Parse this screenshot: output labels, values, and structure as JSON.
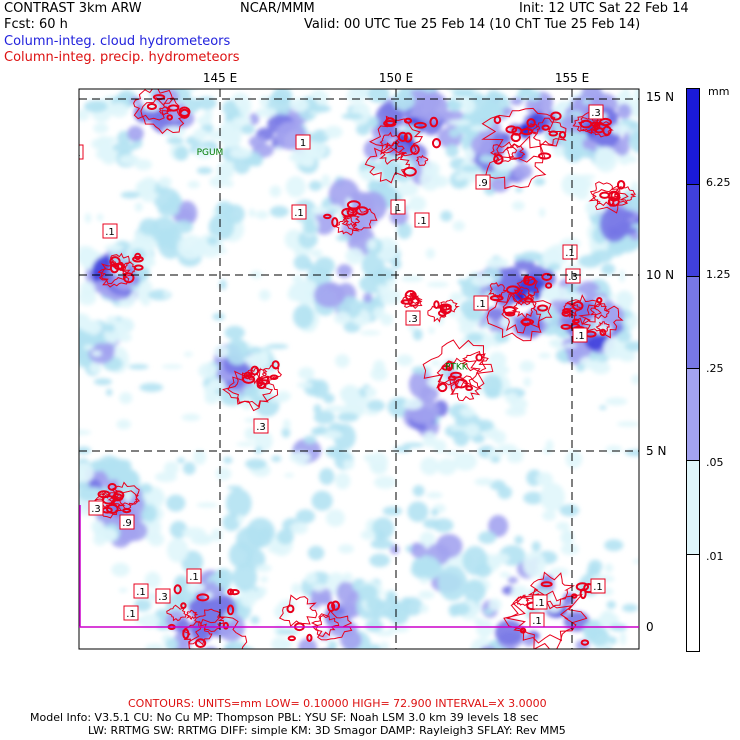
{
  "header": {
    "model": "CONTRAST  3km ARW",
    "forecast": "Fcst:    60 h",
    "org": "NCAR/MMM",
    "init": "Init: 12 UTC Sat 22 Feb 14",
    "valid": "Valid: 00 UTC Tue 25 Feb 14 (10 ChT Tue 25 Feb 14)",
    "field_cloud": "Column-integ. cloud hydrometeors",
    "field_precip": "Column-integ. precip. hydrometeors"
  },
  "map": {
    "lon_labels": [
      "145 E",
      "150 E",
      "155 E"
    ],
    "lat_labels": [
      "15 N",
      "10 N",
      "5 N",
      "0"
    ],
    "stations": [
      {
        "name": "PGUM",
        "lon": 144.8,
        "lat": 13.5
      },
      {
        "name": "PTKK",
        "lon": 151.8,
        "lat": 7.4
      }
    ],
    "extent": {
      "lon_min": 141.0,
      "lon_max": 157.0,
      "lat_min": -0.7,
      "lat_max": 15.2
    },
    "contour_labels": [
      ".1",
      ".3",
      ".9",
      "1"
    ],
    "colors": {
      "c0": "#ffffff",
      "c1": "#e0f6fb",
      "c2": "#b2e2f2",
      "c3": "#a3a3f0",
      "c4": "#7878e6",
      "c5": "#4040dd",
      "c6": "#1a1ad8",
      "contour": "#e8001c",
      "grid": "#000000"
    }
  },
  "colorbar": {
    "unit": "mm",
    "labels": [
      "6.25",
      "1.25",
      ".25",
      ".05",
      ".01"
    ]
  },
  "footer": {
    "contours": "CONTOURS:  UNITS=mm  LOW= 0.10000      HIGH= 72.900      INTERVAL=X  3.0000",
    "line1": "Model Info: V3.5.1    CU: No Cu     MP: Thompson     PBL: YSU      SF: Noah LSM      3.0 km   39 levels    18 sec",
    "line2": "LW: RRTMG    SW: RRTMG   DIFF: simple KM: 3D Smagor DAMP: Rayleigh3   SFLAY: Rev MM5"
  }
}
